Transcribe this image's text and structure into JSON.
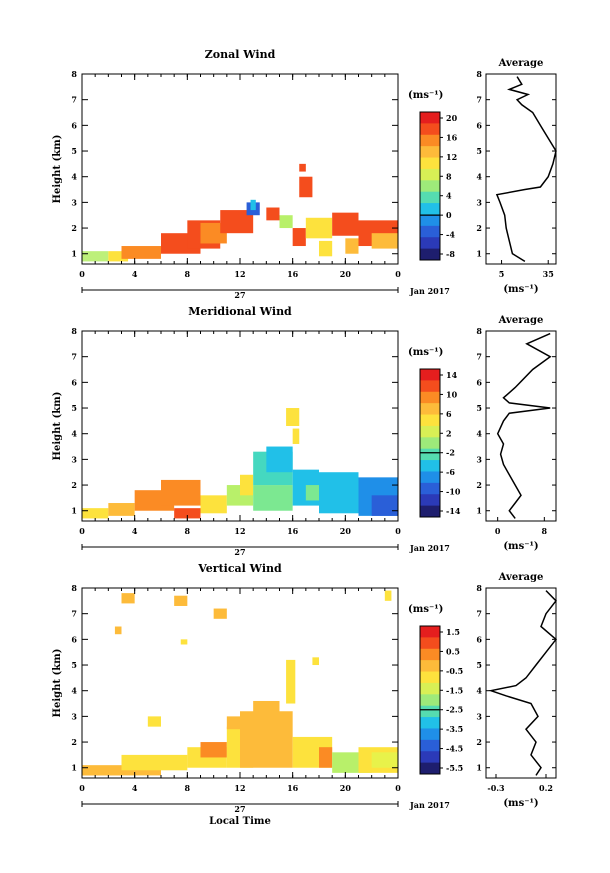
{
  "chart_data": [
    {
      "type": "heatmap",
      "title": "Zonal Wind",
      "ylabel": "Height (km)",
      "xlabel": "",
      "x_ticks": [
        "0",
        "4",
        "8",
        "12",
        "16",
        "20",
        "0"
      ],
      "y_ticks": [
        "1",
        "2",
        "3",
        "4",
        "5",
        "6",
        "7",
        "8"
      ],
      "xlim": [
        0,
        24
      ],
      "ylim": [
        0.6,
        8
      ],
      "date_label": "27",
      "month_label": "Jan 2017",
      "colorbar": {
        "unit": "(ms⁻¹)",
        "ticks": [
          "20",
          "16",
          "12",
          "8",
          "4",
          "0",
          "-4",
          "-8"
        ],
        "min": -10,
        "max": 22
      },
      "profile": {
        "title": "Average",
        "xlabel": "(ms⁻¹)",
        "x_ticks": [
          "5",
          "35"
        ],
        "xlim": [
          -5,
          40
        ],
        "points": [
          [
            20,
            0.7
          ],
          [
            12,
            1.0
          ],
          [
            10,
            1.5
          ],
          [
            8,
            2.0
          ],
          [
            7,
            2.5
          ],
          [
            4,
            3.0
          ],
          [
            2,
            3.3
          ],
          [
            20,
            3.5
          ],
          [
            30,
            3.6
          ],
          [
            35,
            4.0
          ],
          [
            38,
            4.5
          ],
          [
            40,
            5.0
          ],
          [
            38,
            5.2
          ],
          [
            30,
            6.0
          ],
          [
            25,
            6.5
          ],
          [
            18,
            6.8
          ],
          [
            15,
            7.0
          ],
          [
            22,
            7.2
          ],
          [
            10,
            7.4
          ],
          [
            18,
            7.6
          ],
          [
            15,
            7.9
          ]
        ]
      }
    },
    {
      "type": "heatmap",
      "title": "Meridional Wind",
      "ylabel": "Height (km)",
      "xlabel": "",
      "x_ticks": [
        "0",
        "4",
        "8",
        "12",
        "16",
        "20",
        "0"
      ],
      "y_ticks": [
        "1",
        "2",
        "3",
        "4",
        "5",
        "6",
        "7",
        "8"
      ],
      "xlim": [
        0,
        24
      ],
      "ylim": [
        0.6,
        8
      ],
      "date_label": "27",
      "month_label": "Jan 2017",
      "colorbar": {
        "unit": "(ms⁻¹)",
        "ticks": [
          "14",
          "10",
          "6",
          "2",
          "-2",
          "-6",
          "-10",
          "-14"
        ],
        "min": -16,
        "max": 16
      },
      "profile": {
        "title": "Average",
        "xlabel": "(ms⁻¹)",
        "x_ticks": [
          "0",
          "8"
        ],
        "xlim": [
          -2,
          10
        ],
        "points": [
          [
            3,
            0.7
          ],
          [
            2,
            1.0
          ],
          [
            3,
            1.3
          ],
          [
            4,
            1.6
          ],
          [
            3,
            2.0
          ],
          [
            2,
            2.4
          ],
          [
            1,
            2.8
          ],
          [
            0.5,
            3.2
          ],
          [
            1,
            3.6
          ],
          [
            0,
            4.0
          ],
          [
            1,
            4.5
          ],
          [
            2,
            4.8
          ],
          [
            9,
            5.0
          ],
          [
            2,
            5.2
          ],
          [
            1,
            5.4
          ],
          [
            3,
            5.8
          ],
          [
            6,
            6.5
          ],
          [
            9,
            7.0
          ],
          [
            5,
            7.5
          ],
          [
            9,
            7.9
          ]
        ]
      }
    },
    {
      "type": "heatmap",
      "title": "Vertical Wind",
      "ylabel": "Height (km)",
      "xlabel": "Local Time",
      "x_ticks": [
        "0",
        "4",
        "8",
        "12",
        "16",
        "20",
        "0"
      ],
      "y_ticks": [
        "1",
        "2",
        "3",
        "4",
        "5",
        "6",
        "7",
        "8"
      ],
      "xlim": [
        0,
        24
      ],
      "ylim": [
        0.6,
        8
      ],
      "date_label": "27",
      "month_label": "Jan 2017",
      "colorbar": {
        "unit": "(ms⁻¹)",
        "ticks": [
          "1.5",
          "0.5",
          "-0.5",
          "-1.5",
          "-2.5",
          "-3.5",
          "-4.5",
          "-5.5"
        ],
        "min": -6,
        "max": 2
      },
      "profile": {
        "title": "Average",
        "xlabel": "(ms⁻¹)",
        "x_ticks": [
          "-0.3",
          "0.2"
        ],
        "xlim": [
          -0.4,
          0.3
        ],
        "points": [
          [
            0.1,
            0.7
          ],
          [
            0.15,
            1.0
          ],
          [
            0.05,
            1.5
          ],
          [
            0.1,
            2.0
          ],
          [
            0.0,
            2.5
          ],
          [
            0.12,
            3.0
          ],
          [
            0.05,
            3.5
          ],
          [
            -0.2,
            3.8
          ],
          [
            -0.35,
            4.0
          ],
          [
            -0.1,
            4.2
          ],
          [
            0.0,
            4.5
          ],
          [
            0.1,
            5.0
          ],
          [
            0.2,
            5.5
          ],
          [
            0.3,
            6.0
          ],
          [
            0.15,
            6.5
          ],
          [
            0.2,
            7.0
          ],
          [
            0.3,
            7.5
          ],
          [
            0.2,
            7.9
          ]
        ]
      }
    }
  ]
}
